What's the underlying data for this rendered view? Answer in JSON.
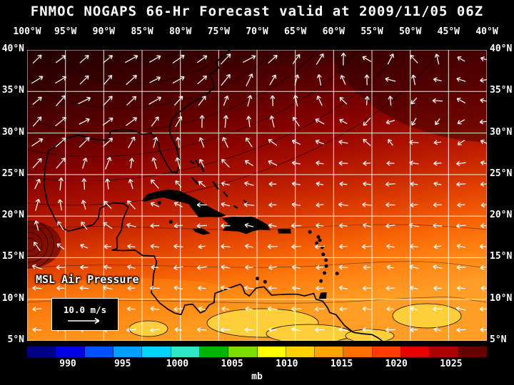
{
  "title": "FNMOC NOGAPS 66-Hr Forecast valid at 2009/11/05 06Z",
  "map": {
    "lon_labels": [
      "100°W",
      "95°W",
      "90°W",
      "85°W",
      "80°W",
      "75°W",
      "70°W",
      "65°W",
      "60°W",
      "55°W",
      "50°W",
      "45°W",
      "40°W"
    ],
    "lat_labels": [
      "40°N",
      "35°N",
      "30°N",
      "25°N",
      "20°N",
      "15°N",
      "10°N",
      "5°N"
    ],
    "field_label": "MSL Air Pressure",
    "wind_legend": "10.0 m/s",
    "field_colors": {
      "highest_pressure": "#1a0000",
      "high_pressure": "#8b0000",
      "mid_pressure": "#cc2200",
      "low_pressure": "#ff8c1a",
      "lowest_pressure": "#ffd23c"
    }
  },
  "colorbar": {
    "unit": "mb",
    "ticks": [
      "990",
      "995",
      "1000",
      "1005",
      "1010",
      "1015",
      "1020",
      "1025"
    ],
    "segment_colors": [
      "#000082",
      "#0000e6",
      "#0050ff",
      "#00a0ff",
      "#00d5ff",
      "#2ee6c8",
      "#00b400",
      "#7ddc00",
      "#ffff00",
      "#ffd200",
      "#ffa500",
      "#ff7000",
      "#ff3c00",
      "#e60000",
      "#aa0000",
      "#640000"
    ]
  }
}
